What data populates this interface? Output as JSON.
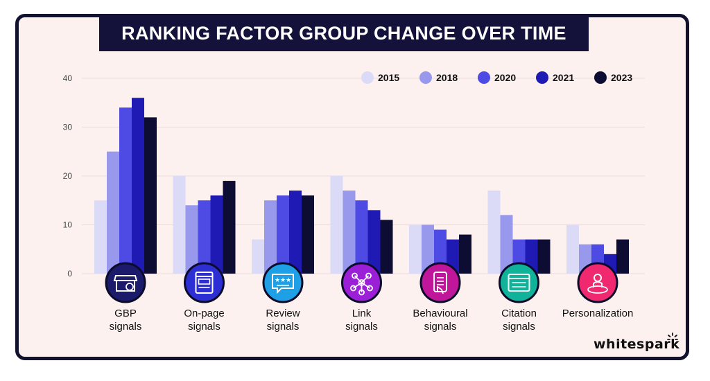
{
  "title": "RANKING FACTOR GROUP CHANGE OVER TIME",
  "brand": "whitespark",
  "colors": {
    "background": "#fcf1ef",
    "border": "#12112e",
    "title_bg": "#14123a"
  },
  "chart_data": {
    "type": "bar",
    "title": "RANKING FACTOR GROUP CHANGE OVER TIME",
    "ylim": [
      0,
      40
    ],
    "yticks": [
      0,
      10,
      20,
      30,
      40
    ],
    "grid": true,
    "legend_position": "top-right",
    "categories": [
      {
        "label": "GBP signals",
        "lines": [
          "GBP",
          "signals"
        ],
        "icon": "storefront-icon",
        "icon_color": "#1b1a6b"
      },
      {
        "label": "On-page signals",
        "lines": [
          "On-page",
          "signals"
        ],
        "icon": "webpage-icon",
        "icon_color": "#2e2fd3"
      },
      {
        "label": "Review signals",
        "lines": [
          "Review",
          "signals"
        ],
        "icon": "review-stars-icon",
        "icon_color": "#1fa0e6"
      },
      {
        "label": "Link signals",
        "lines": [
          "Link",
          "signals"
        ],
        "icon": "network-link-icon",
        "icon_color": "#9b1fd6"
      },
      {
        "label": "Behavioural signals",
        "lines": [
          "Behavioural",
          "signals"
        ],
        "icon": "phone-tap-icon",
        "icon_color": "#c0179a"
      },
      {
        "label": "Citation signals",
        "lines": [
          "Citation",
          "signals"
        ],
        "icon": "citation-list-icon",
        "icon_color": "#10b39a"
      },
      {
        "label": "Personalization",
        "lines": [
          "Personalization"
        ],
        "icon": "person-location-icon",
        "icon_color": "#ef2870"
      }
    ],
    "series": [
      {
        "name": "2015",
        "color": "#dcdbf7",
        "values": [
          15,
          20,
          7,
          20,
          10,
          17,
          10
        ]
      },
      {
        "name": "2018",
        "color": "#9898ec",
        "values": [
          25,
          14,
          15,
          17,
          10,
          12,
          6
        ]
      },
      {
        "name": "2020",
        "color": "#4d4be3",
        "values": [
          34,
          15,
          16,
          15,
          9,
          7,
          6
        ]
      },
      {
        "name": "2021",
        "color": "#1f1ab4",
        "values": [
          36,
          16,
          17,
          13,
          7,
          7,
          4
        ]
      },
      {
        "name": "2023",
        "color": "#0d0c32",
        "values": [
          32,
          19,
          16,
          11,
          8,
          7,
          7
        ]
      }
    ]
  }
}
